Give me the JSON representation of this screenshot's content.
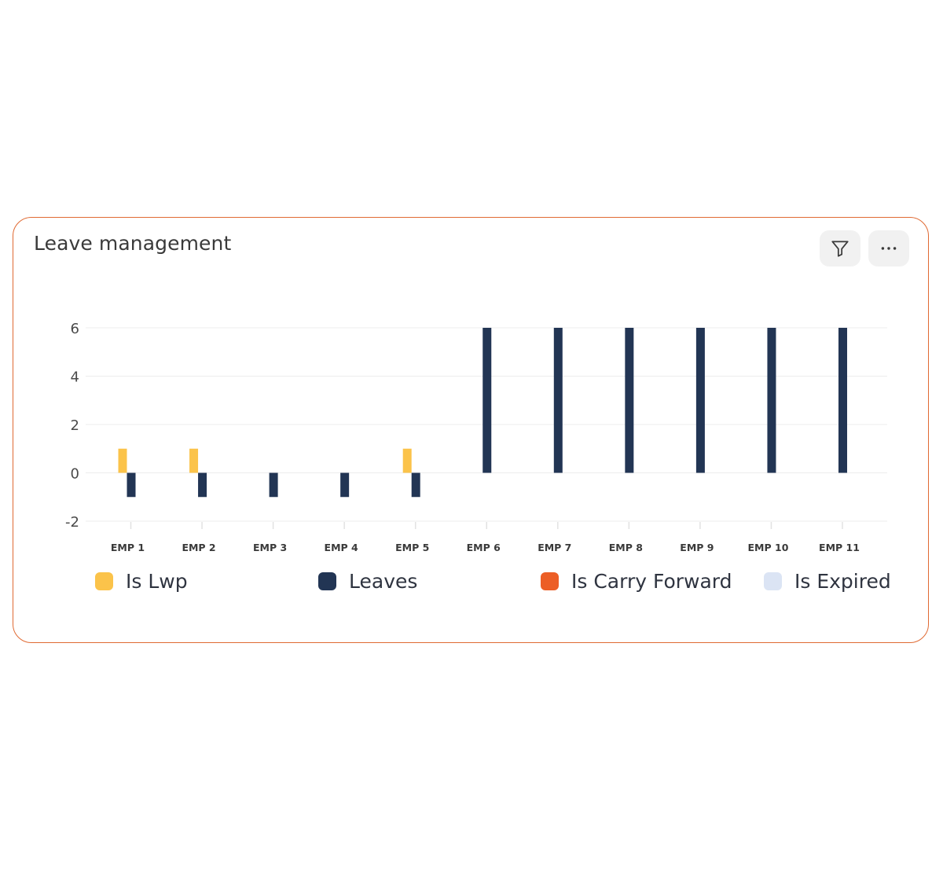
{
  "card": {
    "title": "Leave management",
    "actions": [
      {
        "name": "filter",
        "icon": "filter-icon"
      },
      {
        "name": "more",
        "icon": "more-horizontal-icon"
      }
    ]
  },
  "colors": {
    "card_border": "#e06a33",
    "is_lwp": "#fbc34a",
    "leaves": "#223554",
    "is_carry_forward": "#ec5e26",
    "is_expired": "#dbe4f4"
  },
  "chart_data": {
    "type": "bar",
    "categories": [
      "EMP 1",
      "EMP 2",
      "EMP 3",
      "EMP 4",
      "EMP 5",
      "EMP 6",
      "EMP 7",
      "EMP 8",
      "EMP 9",
      "EMP 10",
      "EMP 11"
    ],
    "series": [
      {
        "name": "Is Lwp",
        "color": "#fbc34a",
        "values": [
          1,
          1,
          0,
          0,
          1,
          0,
          0,
          0,
          0,
          0,
          0
        ]
      },
      {
        "name": "Leaves",
        "color": "#223554",
        "values": [
          -1,
          -1,
          -1,
          -1,
          -1,
          6,
          6,
          6,
          6,
          6,
          6
        ]
      },
      {
        "name": "Is Carry Forward",
        "color": "#ec5e26",
        "values": [
          0,
          0,
          0,
          0,
          0,
          0,
          0,
          0,
          0,
          0,
          0
        ]
      },
      {
        "name": "Is Expired",
        "color": "#dbe4f4",
        "values": [
          0,
          0,
          0,
          0,
          0,
          0,
          0,
          0,
          0,
          0,
          0
        ]
      }
    ],
    "yticks": [
      6,
      4,
      2,
      0,
      -2
    ],
    "ytick_labels": [
      "6",
      "4",
      "2",
      "0",
      "-2"
    ],
    "ylim": [
      -2,
      6
    ],
    "grid": true,
    "legend_position": "bottom"
  }
}
